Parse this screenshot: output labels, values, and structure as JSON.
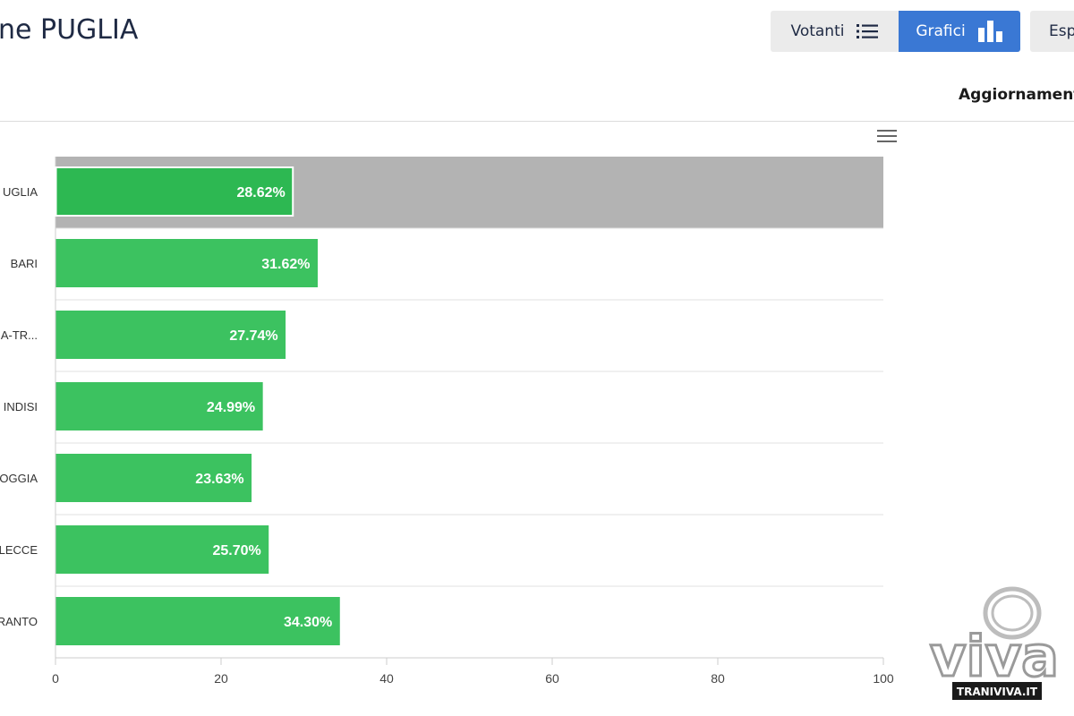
{
  "header": {
    "title": "ne PUGLIA",
    "tabs": [
      {
        "label": "Votanti",
        "icon": "list-icon",
        "active": false
      },
      {
        "label": "Grafici",
        "icon": "bar-chart-icon",
        "active": true
      },
      {
        "label": "Esp",
        "icon": "",
        "active": false
      }
    ],
    "update_label": "Aggiornamento"
  },
  "chart_data": {
    "type": "bar",
    "orientation": "horizontal",
    "categories": [
      "UGLIA",
      "BARI",
      "A-TR...",
      "INDISI",
      "OGGIA",
      "LECCE",
      "RANTO"
    ],
    "values": [
      28.62,
      31.62,
      27.74,
      24.99,
      23.63,
      25.7,
      34.3
    ],
    "data_labels": [
      "28.62%",
      "31.62%",
      "27.74%",
      "24.99%",
      "23.63%",
      "25.70%",
      "34.30%"
    ],
    "highlighted_index": 0,
    "xlim": [
      0,
      100
    ],
    "xticks": [
      0,
      20,
      40,
      60,
      80,
      100
    ],
    "bar_color": "#3cc260",
    "highlight_bar_color": "#2db852",
    "highlight_band_color": "#b3b3b3",
    "grid": true
  },
  "watermark": {
    "logo_text": "viva",
    "site": "TRANIVIVA.IT"
  },
  "colors": {
    "accent": "#3a78d4",
    "tab_bg": "#ebebeb"
  }
}
